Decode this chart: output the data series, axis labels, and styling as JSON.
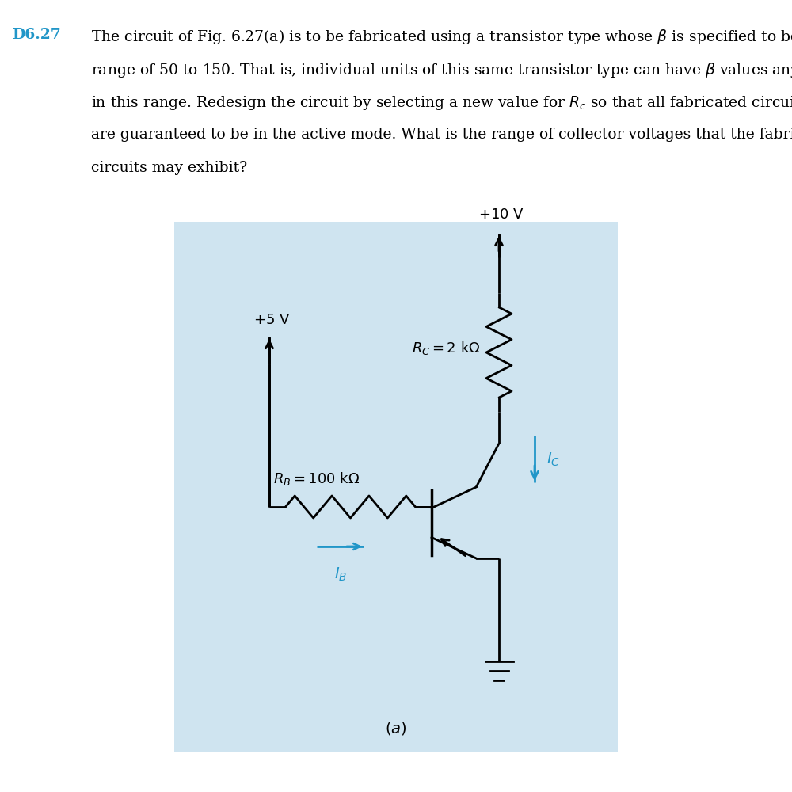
{
  "bg_color": "#ffffff",
  "circuit_bg": "#cfe4f0",
  "cyan_color": "#2196C8",
  "title_label": "D6.27",
  "title_color": "#2196C8",
  "body_lines": [
    "The circuit of Fig. 6.27(a) is to be fabricated using a transistor type whose $\\beta$ is specified to be in the",
    "range of 50 to 150. That is, individual units of this same transistor type can have $\\beta$ values anywhere",
    "in this range. Redesign the circuit by selecting a new value for $R_c$ so that all fabricated circuits",
    "are guaranteed to be in the active mode. What is the range of collector voltages that the fabricated",
    "circuits may exhibit?"
  ],
  "text_fontsize": 13.5,
  "title_fontsize": 13.5,
  "circuit_label": "(a)"
}
